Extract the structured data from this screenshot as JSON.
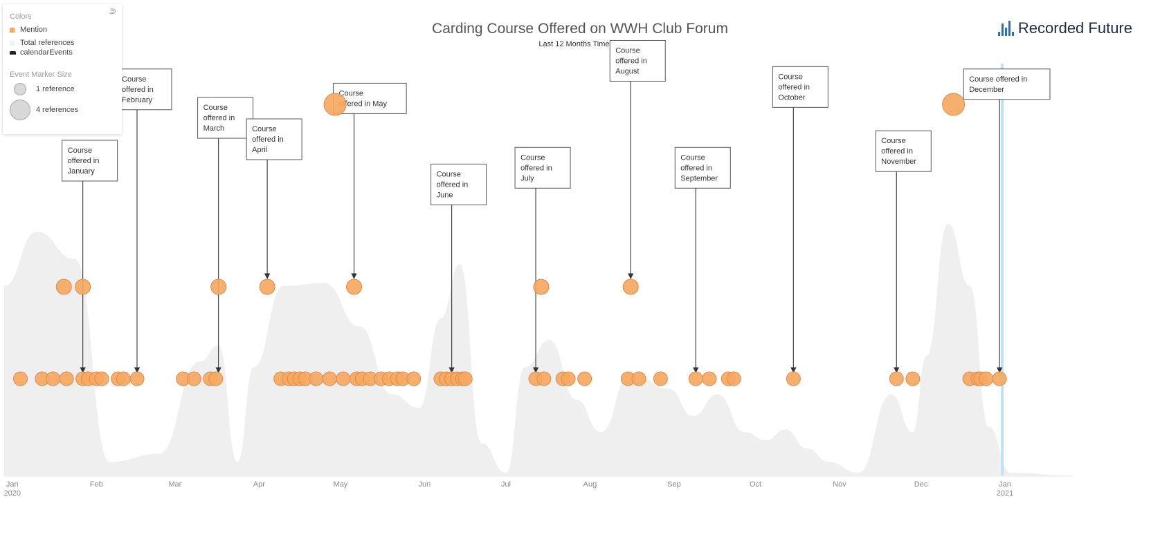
{
  "chart_data": {
    "type": "scatter",
    "title": "Carding Course Offered on WWH Club Forum",
    "subtitle": "Last 12 Months Timeline",
    "x_range": [
      "2019-12-29",
      "2021-01-26"
    ],
    "x_ticks": [
      {
        "month": "Jan",
        "year": "2020",
        "date": "2020-01-01"
      },
      {
        "month": "Feb",
        "year": "",
        "date": "2020-02-01"
      },
      {
        "month": "Mar",
        "year": "",
        "date": "2020-03-01"
      },
      {
        "month": "Apr",
        "year": "",
        "date": "2020-04-01"
      },
      {
        "month": "May",
        "year": "",
        "date": "2020-05-01"
      },
      {
        "month": "Jun",
        "year": "",
        "date": "2020-06-01"
      },
      {
        "month": "Jul",
        "year": "",
        "date": "2020-07-01"
      },
      {
        "month": "Aug",
        "year": "",
        "date": "2020-08-01"
      },
      {
        "month": "Sep",
        "year": "",
        "date": "2020-09-01"
      },
      {
        "month": "Oct",
        "year": "",
        "date": "2020-10-01"
      },
      {
        "month": "Nov",
        "year": "",
        "date": "2020-11-01"
      },
      {
        "month": "Dec",
        "year": "",
        "date": "2020-12-01"
      },
      {
        "month": "Jan",
        "year": "2021",
        "date": "2021-01-01"
      }
    ],
    "current_date_marker": "2020-12-31",
    "series": [
      {
        "name": "Mention",
        "color": "#f5a85f",
        "row1_references": 1,
        "row2_references": 1,
        "row3_references": 4,
        "row1_dates": [
          "2020-01-04",
          "2020-01-12",
          "2020-01-16",
          "2020-01-21",
          "2020-01-27",
          "2020-01-29",
          "2020-02-01",
          "2020-02-03",
          "2020-02-09",
          "2020-02-11",
          "2020-02-16",
          "2020-03-04",
          "2020-03-08",
          "2020-03-14",
          "2020-03-16",
          "2020-04-09",
          "2020-04-12",
          "2020-04-14",
          "2020-04-16",
          "2020-04-18",
          "2020-04-22",
          "2020-04-27",
          "2020-05-02",
          "2020-05-07",
          "2020-05-09",
          "2020-05-12",
          "2020-05-16",
          "2020-05-19",
          "2020-05-22",
          "2020-05-24",
          "2020-05-28",
          "2020-06-07",
          "2020-06-09",
          "2020-06-11",
          "2020-06-13",
          "2020-06-15",
          "2020-06-16",
          "2020-07-12",
          "2020-07-15",
          "2020-07-22",
          "2020-07-24",
          "2020-07-30",
          "2020-08-15",
          "2020-08-19",
          "2020-08-27",
          "2020-09-09",
          "2020-09-14",
          "2020-09-21",
          "2020-09-23",
          "2020-10-15",
          "2020-11-22",
          "2020-11-28",
          "2020-12-19",
          "2020-12-22",
          "2020-12-23",
          "2020-12-25",
          "2020-12-30"
        ],
        "row2_dates": [
          "2020-01-20",
          "2020-01-27",
          "2020-03-17",
          "2020-04-04",
          "2020-05-06",
          "2020-07-14",
          "2020-08-16"
        ],
        "row3_dates": [
          "2020-04-29",
          "2020-12-13"
        ]
      },
      {
        "name": "Total references",
        "color": "#efefef",
        "x": [
          "2019-12-29",
          "2020-01-10",
          "2020-01-24",
          "2020-02-06",
          "2020-02-24",
          "2020-03-10",
          "2020-03-17",
          "2020-03-24",
          "2020-03-30",
          "2020-04-10",
          "2020-04-25",
          "2020-05-08",
          "2020-05-20",
          "2020-05-30",
          "2020-06-07",
          "2020-06-14",
          "2020-06-22",
          "2020-07-01",
          "2020-07-08",
          "2020-07-17",
          "2020-07-27",
          "2020-08-05",
          "2020-08-16",
          "2020-08-30",
          "2020-09-08",
          "2020-09-17",
          "2020-09-27",
          "2020-10-05",
          "2020-10-12",
          "2020-10-20",
          "2020-10-28",
          "2020-11-08",
          "2020-11-20",
          "2020-11-28",
          "2020-12-03",
          "2020-12-11",
          "2020-12-19",
          "2020-12-26",
          "2021-01-03",
          "2021-01-26"
        ],
        "y": [
          70,
          90,
          80,
          5,
          8,
          42,
          48,
          5,
          40,
          70,
          71,
          55,
          30,
          25,
          58,
          78,
          12,
          1,
          40,
          50,
          28,
          16,
          38,
          32,
          22,
          30,
          16,
          13,
          17,
          10,
          5,
          1,
          30,
          16,
          44,
          93,
          70,
          18,
          1,
          0
        ]
      }
    ],
    "events": [
      {
        "name": "calendarEvents",
        "lines": [
          "Course",
          "offered in",
          "January"
        ],
        "date": "2020-01-27",
        "row": 1,
        "box_top_frac": 0.705
      },
      {
        "name": "calendarEvents",
        "lines": [
          "Course",
          "offered in",
          "February"
        ],
        "date": "2020-02-16",
        "row": 1,
        "box_top_frac": 0.855
      },
      {
        "name": "calendarEvents",
        "lines": [
          "Course",
          "offered in",
          "March"
        ],
        "date": "2020-03-17",
        "row": 1,
        "box_top_frac": 0.795
      },
      {
        "name": "calendarEvents",
        "lines": [
          "Course",
          "offered in",
          "April"
        ],
        "date": "2020-04-04",
        "row": 2,
        "box_top_frac": 0.75
      },
      {
        "name": "calendarEvents",
        "lines": [
          "Course",
          "offered in May"
        ],
        "date": "2020-05-06",
        "row": 2,
        "box_top_frac": 0.825
      },
      {
        "name": "calendarEvents",
        "lines": [
          "Course",
          "offered in",
          "June"
        ],
        "date": "2020-06-11",
        "row": 1,
        "box_top_frac": 0.655
      },
      {
        "name": "calendarEvents",
        "lines": [
          "Course",
          "offered in",
          "July"
        ],
        "date": "2020-07-12",
        "row": 1,
        "box_top_frac": 0.69
      },
      {
        "name": "calendarEvents",
        "lines": [
          "Course",
          "offered in",
          "August"
        ],
        "date": "2020-08-16",
        "row": 2,
        "box_top_frac": 0.915
      },
      {
        "name": "calendarEvents",
        "lines": [
          "Course",
          "offered in",
          "September"
        ],
        "date": "2020-09-09",
        "row": 1,
        "box_top_frac": 0.69
      },
      {
        "name": "calendarEvents",
        "lines": [
          "Course",
          "offered in",
          "October"
        ],
        "date": "2020-10-15",
        "row": 1,
        "box_top_frac": 0.86
      },
      {
        "name": "calendarEvents",
        "lines": [
          "Course",
          "offered in",
          "November"
        ],
        "date": "2020-11-22",
        "row": 1,
        "box_top_frac": 0.725
      },
      {
        "name": "calendarEvents",
        "lines": [
          "Course offered in",
          "December"
        ],
        "date": "2020-12-30",
        "row": 1,
        "box_top_frac": 0.855
      }
    ]
  },
  "legend": {
    "colors_title": "Colors",
    "mention_label": "Mention",
    "total_label": "Total references",
    "events_label": "calendarEvents",
    "size_title": "Event Marker Size",
    "size_small_label": "1 reference",
    "size_large_label": "4 references",
    "collapse_icon": "double-chevron-icon"
  },
  "brand": {
    "name": "Recorded Future",
    "icon": "recorded-future-logo-icon",
    "color": "#1d2a4a",
    "accent": "#2b6fb6"
  }
}
